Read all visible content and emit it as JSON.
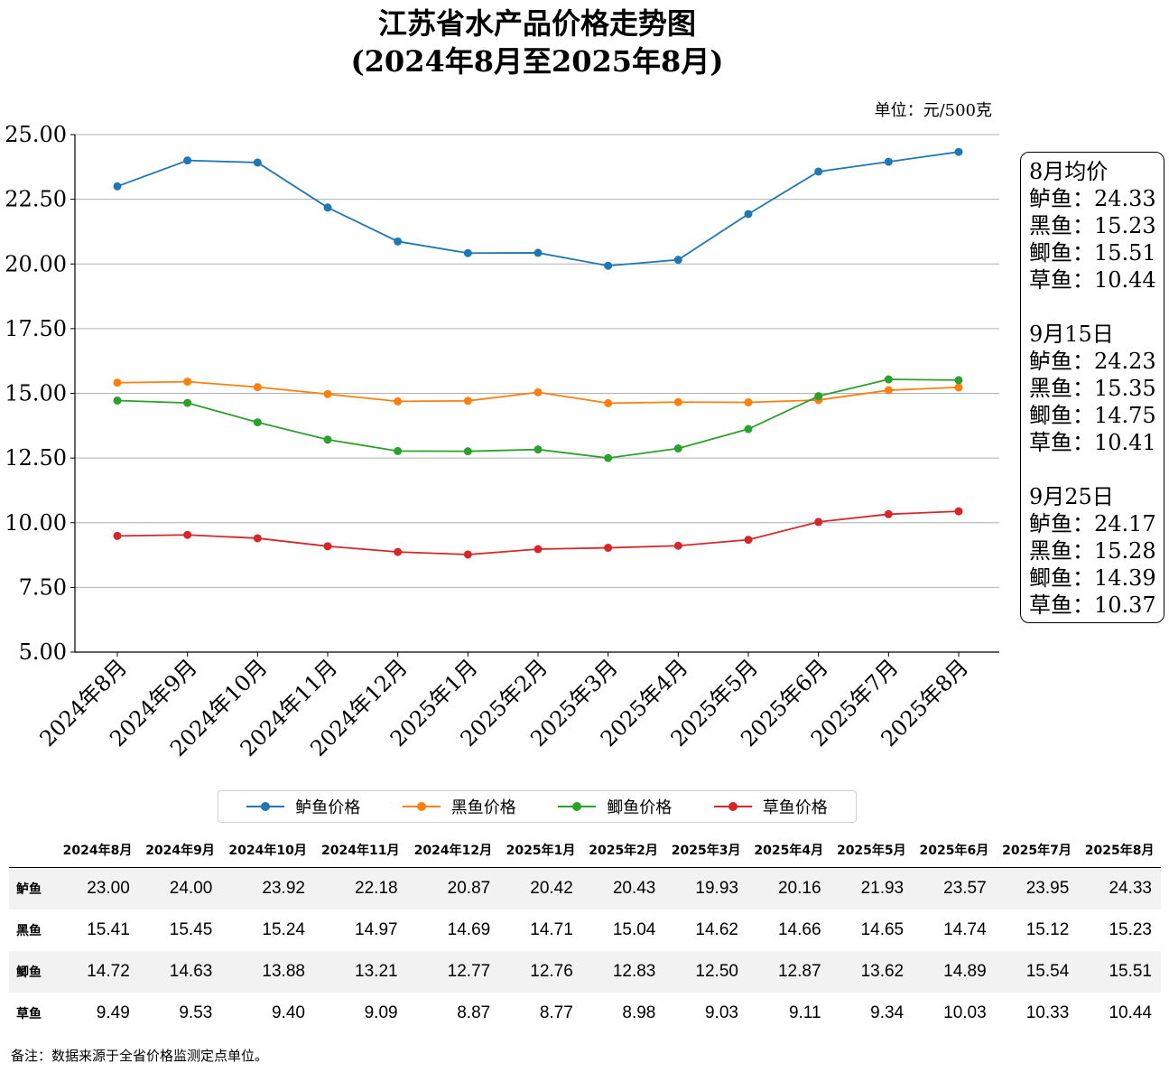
{
  "title_line1": "江苏省水产品价格走势图",
  "title_line2": "(2024年8月至2025年8月)",
  "unit_label": "单位：元/500克",
  "chart_data": {
    "type": "line",
    "title": "江苏省水产品价格走势图",
    "subtitle": "(2024年8月至2025年8月)",
    "categories": [
      "2024年8月",
      "2024年9月",
      "2024年10月",
      "2024年11月",
      "2024年12月",
      "2025年1月",
      "2025年2月",
      "2025年3月",
      "2025年4月",
      "2025年5月",
      "2025年6月",
      "2025年7月",
      "2025年8月"
    ],
    "ylim": [
      5,
      25
    ],
    "yticks": [
      5,
      7.5,
      10,
      12.5,
      15,
      17.5,
      20,
      22.5,
      25
    ],
    "ytick_labels": [
      "5.00",
      "7.50",
      "10.00",
      "12.50",
      "15.00",
      "17.50",
      "20.00",
      "22.50",
      "25.00"
    ],
    "grid": "horizontal",
    "legend_position": "bottom",
    "series": [
      {
        "name": "鲈鱼价格",
        "color": "#1f77b4",
        "values": [
          23.0,
          24.0,
          23.92,
          22.18,
          20.87,
          20.42,
          20.43,
          19.93,
          20.16,
          21.93,
          23.57,
          23.95,
          24.33
        ]
      },
      {
        "name": "黑鱼价格",
        "color": "#ff7f0e",
        "values": [
          15.41,
          15.45,
          15.24,
          14.97,
          14.69,
          14.71,
          15.04,
          14.62,
          14.66,
          14.65,
          14.74,
          15.12,
          15.23
        ]
      },
      {
        "name": "鲫鱼价格",
        "color": "#2ca02c",
        "values": [
          14.72,
          14.63,
          13.88,
          13.21,
          12.77,
          12.76,
          12.83,
          12.5,
          12.87,
          13.62,
          14.89,
          15.54,
          15.51
        ]
      },
      {
        "name": "草鱼价格",
        "color": "#d62728",
        "values": [
          9.49,
          9.53,
          9.4,
          9.09,
          8.87,
          8.77,
          8.98,
          9.03,
          9.11,
          9.34,
          10.03,
          10.33,
          10.44
        ]
      }
    ]
  },
  "info_box": [
    {
      "title": "8月均价",
      "rows": [
        "鲈鱼：24.33",
        "黑鱼：15.23",
        "鲫鱼：15.51",
        "草鱼：10.44"
      ]
    },
    {
      "title": "9月15日",
      "rows": [
        "鲈鱼：24.23",
        "黑鱼：15.35",
        "鲫鱼：14.75",
        "草鱼：10.41"
      ]
    },
    {
      "title": "9月25日",
      "rows": [
        "鲈鱼：24.17",
        "黑鱼：15.28",
        "鲫鱼：14.39",
        "草鱼：10.37"
      ]
    }
  ],
  "table": {
    "headers": [
      "2024年8月",
      "2024年9月",
      "2024年10月",
      "2024年11月",
      "2024年12月",
      "2025年1月",
      "2025年2月",
      "2025年3月",
      "2025年4月",
      "2025年5月",
      "2025年6月",
      "2025年7月",
      "2025年8月"
    ],
    "rows": [
      {
        "label": "鲈鱼",
        "values": [
          "23.00",
          "24.00",
          "23.92",
          "22.18",
          "20.87",
          "20.42",
          "20.43",
          "19.93",
          "20.16",
          "21.93",
          "23.57",
          "23.95",
          "24.33"
        ]
      },
      {
        "label": "黑鱼",
        "values": [
          "15.41",
          "15.45",
          "15.24",
          "14.97",
          "14.69",
          "14.71",
          "15.04",
          "14.62",
          "14.66",
          "14.65",
          "14.74",
          "15.12",
          "15.23"
        ]
      },
      {
        "label": "鲫鱼",
        "values": [
          "14.72",
          "14.63",
          "13.88",
          "13.21",
          "12.77",
          "12.76",
          "12.83",
          "12.50",
          "12.87",
          "13.62",
          "14.89",
          "15.54",
          "15.51"
        ]
      },
      {
        "label": "草鱼",
        "values": [
          "9.49",
          "9.53",
          "9.40",
          "9.09",
          "8.87",
          "8.77",
          "8.98",
          "9.03",
          "9.11",
          "9.34",
          "10.03",
          "10.33",
          "10.44"
        ]
      }
    ]
  },
  "footnote": "备注：数据来源于全省价格监测定点单位。"
}
